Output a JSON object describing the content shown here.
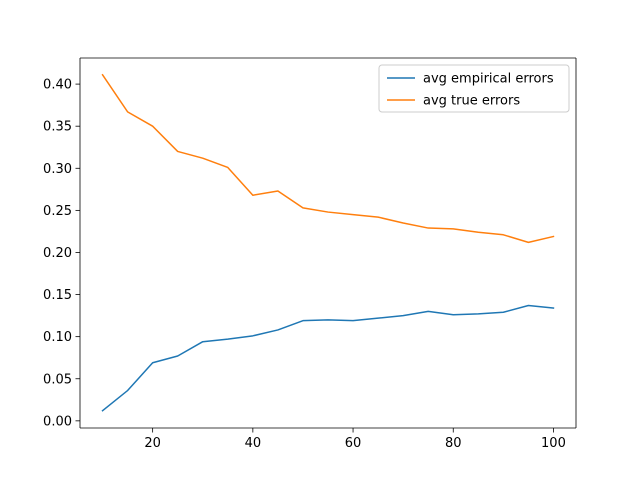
{
  "chart_data": {
    "type": "line",
    "title": "",
    "xlabel": "",
    "ylabel": "",
    "xlim": [
      5.5,
      104.5
    ],
    "ylim": [
      -0.0085,
      0.431
    ],
    "xticks": [
      20,
      40,
      60,
      80,
      100
    ],
    "xtick_labels": [
      "20",
      "40",
      "60",
      "80",
      "100"
    ],
    "yticks": [
      0.0,
      0.05,
      0.1,
      0.15,
      0.2,
      0.25,
      0.3,
      0.35,
      0.4
    ],
    "ytick_labels": [
      "0.00",
      "0.05",
      "0.10",
      "0.15",
      "0.20",
      "0.25",
      "0.30",
      "0.35",
      "0.40"
    ],
    "grid": false,
    "legend_position": "top-right",
    "x": [
      10,
      15,
      20,
      25,
      30,
      35,
      40,
      45,
      50,
      55,
      60,
      65,
      70,
      75,
      80,
      85,
      90,
      95,
      100
    ],
    "series": [
      {
        "name": "avg empirical errors",
        "color": "#1f77b4",
        "values": [
          0.012,
          0.036,
          0.069,
          0.077,
          0.094,
          0.097,
          0.101,
          0.108,
          0.119,
          0.12,
          0.119,
          0.122,
          0.125,
          0.13,
          0.126,
          0.127,
          0.129,
          0.137,
          0.134
        ]
      },
      {
        "name": "avg true errors",
        "color": "#ff7f0e",
        "values": [
          0.411,
          0.367,
          0.35,
          0.32,
          0.312,
          0.301,
          0.268,
          0.273,
          0.253,
          0.248,
          0.245,
          0.242,
          0.235,
          0.229,
          0.228,
          0.224,
          0.221,
          0.212,
          0.219
        ]
      }
    ]
  }
}
